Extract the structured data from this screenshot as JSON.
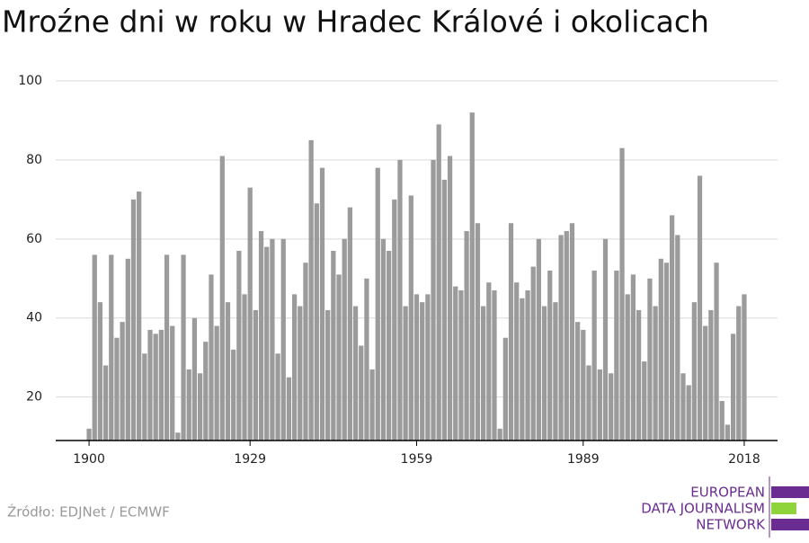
{
  "chart_data": {
    "type": "bar",
    "title": "Mroźne dni w roku w Hradec Králové i okolicach",
    "x": [
      1900,
      1901,
      1902,
      1903,
      1904,
      1905,
      1906,
      1907,
      1908,
      1909,
      1910,
      1911,
      1912,
      1913,
      1914,
      1915,
      1916,
      1917,
      1918,
      1919,
      1920,
      1921,
      1922,
      1923,
      1924,
      1925,
      1926,
      1927,
      1928,
      1929,
      1930,
      1931,
      1932,
      1933,
      1934,
      1935,
      1936,
      1937,
      1938,
      1939,
      1940,
      1941,
      1942,
      1943,
      1944,
      1945,
      1946,
      1947,
      1948,
      1949,
      1950,
      1951,
      1952,
      1953,
      1954,
      1955,
      1956,
      1957,
      1958,
      1959,
      1960,
      1961,
      1962,
      1963,
      1964,
      1965,
      1966,
      1967,
      1968,
      1969,
      1970,
      1971,
      1972,
      1973,
      1974,
      1975,
      1976,
      1977,
      1978,
      1979,
      1980,
      1981,
      1982,
      1983,
      1984,
      1985,
      1986,
      1987,
      1988,
      1989,
      1990,
      1991,
      1992,
      1993,
      1994,
      1995,
      1996,
      1997,
      1998,
      1999,
      2000,
      2001,
      2002,
      2003,
      2004,
      2005,
      2006,
      2007,
      2008,
      2009,
      2010,
      2011,
      2012,
      2013,
      2014,
      2015,
      2016,
      2017,
      2018
    ],
    "values": [
      12,
      56,
      44,
      28,
      56,
      35,
      39,
      55,
      70,
      72,
      31,
      37,
      36,
      37,
      56,
      38,
      11,
      56,
      27,
      40,
      26,
      34,
      51,
      38,
      81,
      44,
      32,
      57,
      46,
      73,
      42,
      62,
      58,
      60,
      31,
      60,
      25,
      46,
      43,
      54,
      85,
      69,
      78,
      42,
      57,
      51,
      60,
      68,
      43,
      33,
      50,
      27,
      78,
      60,
      57,
      70,
      80,
      43,
      71,
      46,
      44,
      46,
      80,
      89,
      75,
      81,
      48,
      47,
      62,
      92,
      64,
      43,
      49,
      47,
      12,
      35,
      64,
      49,
      45,
      47,
      53,
      60,
      43,
      52,
      44,
      61,
      62,
      64,
      39,
      37,
      28,
      52,
      27,
      60,
      26,
      52,
      83,
      46,
      51,
      42,
      29,
      50,
      43,
      55,
      54,
      66,
      61,
      26,
      23,
      44,
      76,
      38,
      42,
      54,
      19,
      13,
      36,
      43,
      46
    ],
    "color": "#9b9b9b",
    "xlim": [
      1894,
      2024
    ],
    "xticks": [
      1900,
      1929,
      1959,
      1989,
      2018
    ],
    "ylim": [
      9,
      100
    ],
    "yticks": [
      20,
      40,
      60,
      80,
      100
    ],
    "grid": true
  },
  "source": "Źródło: EDJNet / ECMWF",
  "logo": [
    "EUROPEAN",
    "DATA JOURNALISM",
    "NETWORK"
  ]
}
